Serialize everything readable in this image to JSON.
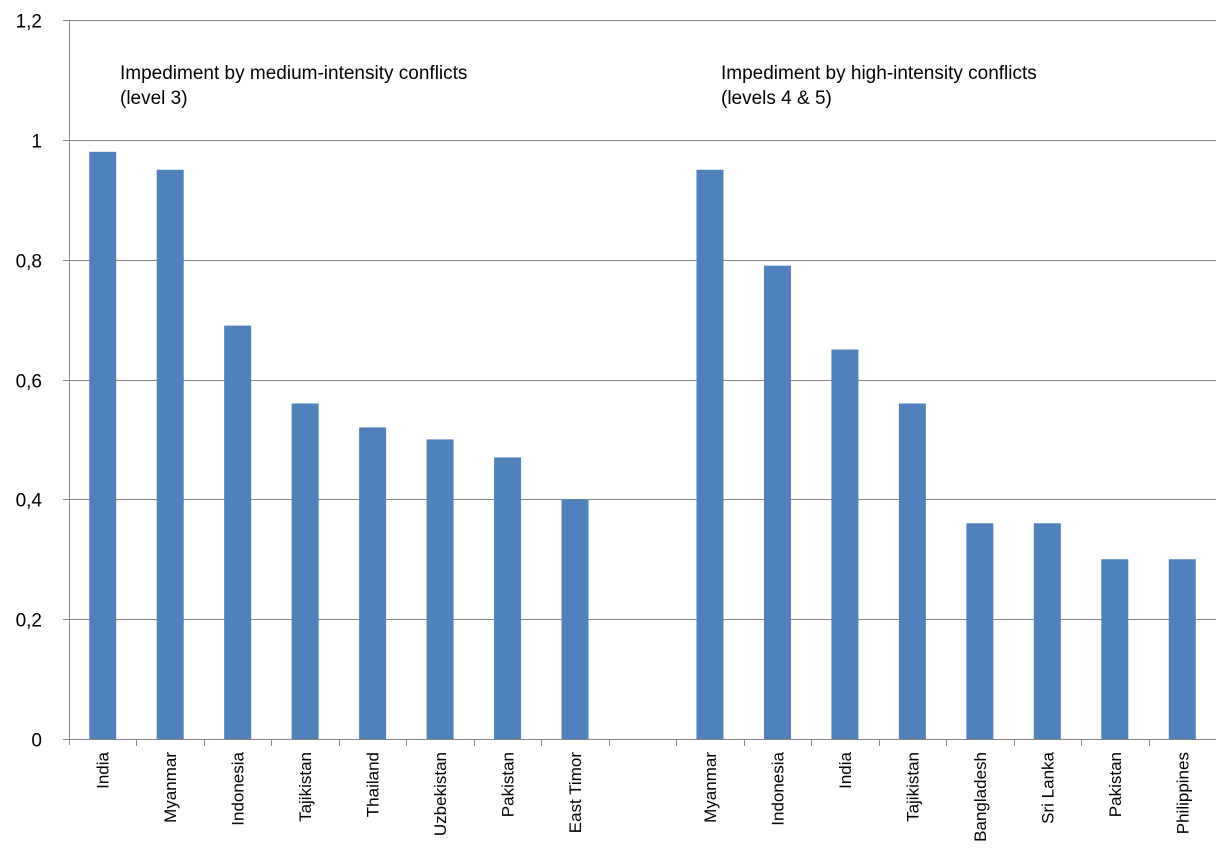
{
  "chart_data": {
    "type": "bar",
    "categories": [
      "India",
      "Myanmar",
      "Indonesia",
      "Tajikistan",
      "Thailand",
      "Uzbekistan",
      "Pakistan",
      "East Timor",
      "",
      "Myanmar",
      "Indonesia",
      "India",
      "Tajikistan",
      "Bangladesh",
      "Sri Lanka",
      "Pakistan",
      "Philippines"
    ],
    "values": [
      0.98,
      0.95,
      0.69,
      0.56,
      0.52,
      0.5,
      0.47,
      0.4,
      null,
      0.95,
      0.79,
      0.65,
      0.56,
      0.36,
      0.36,
      0.3,
      0.3
    ],
    "ylim": [
      0,
      1.2
    ],
    "yticks": [
      0,
      0.2,
      0.4,
      0.6,
      0.8,
      1,
      1.2
    ],
    "ytick_labels": [
      "0",
      "0,2",
      "0,4",
      "0,6",
      "0,8",
      "1",
      "1,2"
    ],
    "grid": true,
    "bar_color": "#4f81bd",
    "annotations": [
      {
        "line1": "Impediment by medium-intensity conflicts",
        "line2": "(level 3)"
      },
      {
        "line1": "Impediment by high-intensity conflicts",
        "line2": "(levels 4 & 5)"
      }
    ]
  }
}
